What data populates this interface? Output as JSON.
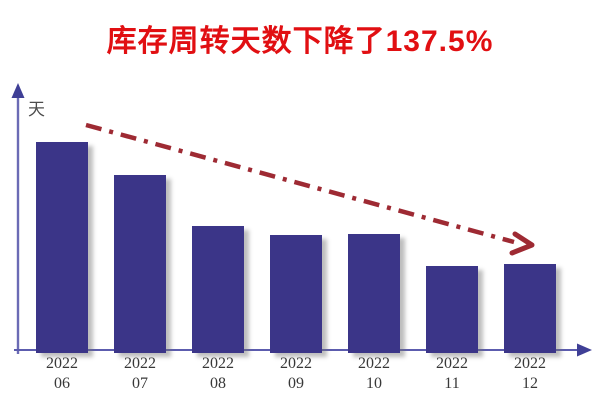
{
  "page": {
    "background": "#ffffff"
  },
  "title": {
    "text": "库存周转天数下降了137.5%",
    "color": "#e10f12"
  },
  "chart_data": {
    "type": "bar",
    "title": "库存周转天数下降了137.5%",
    "subtitle": "",
    "xlabel": "",
    "ylabel": "天",
    "categories": [
      "2022-06",
      "2022-07",
      "2022-08",
      "2022-09",
      "2022-10",
      "2022-11",
      "2022-12"
    ],
    "tick_labels": [
      {
        "line1": "2022",
        "line2": "06"
      },
      {
        "line1": "2022",
        "line2": "07"
      },
      {
        "line1": "2022",
        "line2": "08"
      },
      {
        "line1": "2022",
        "line2": "09"
      },
      {
        "line1": "2022",
        "line2": "10"
      },
      {
        "line1": "2022",
        "line2": "11"
      },
      {
        "line1": "2022",
        "line2": "12"
      }
    ],
    "values": [
      19,
      16,
      11.4,
      10.6,
      10.7,
      7.8,
      8
    ],
    "values_note": "days, estimated from bar heights; 19→8 matches the stated 137.5% decrease",
    "ylim": [
      0,
      22
    ],
    "grid": false,
    "legend": false,
    "value_labels_shown": false,
    "colors": {
      "bar": "#3b3588",
      "axis": "#5c5cae",
      "axis_arrow": "#3f3f96",
      "trend_arrow": "#9e2a33",
      "tick_text": "#383838",
      "ylabel_text": "#4d4d4d",
      "title_text": "#e10f12"
    },
    "annotations": [
      {
        "type": "trend-arrow",
        "style": "dash-dot",
        "color": "#9e2a33",
        "direction": "down-right",
        "note": "downward dashed trend arrow above the bars ending in a hand-drawn arrowhead"
      }
    ]
  }
}
